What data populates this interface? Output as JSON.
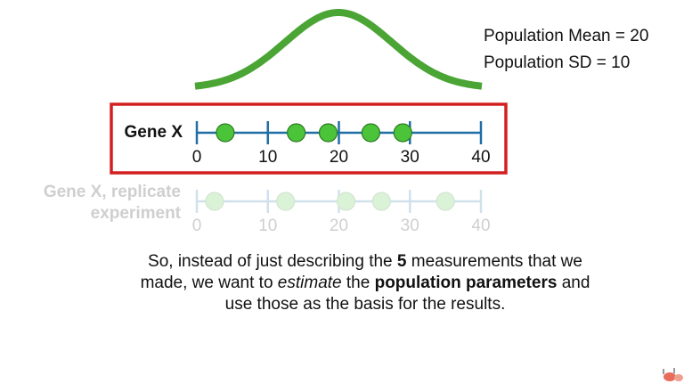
{
  "stats": {
    "mean_label": "Population Mean = 20",
    "sd_label": "Population SD = 10"
  },
  "gene_x": {
    "label": "Gene X",
    "measurements": [
      4,
      14,
      18.5,
      24.5,
      29
    ],
    "ticks": [
      "0",
      "10",
      "20",
      "30",
      "40"
    ]
  },
  "replicate": {
    "label_line1": "Gene X, replicate",
    "label_line2": "experiment",
    "measurements": [
      2.5,
      12.5,
      21,
      26,
      35
    ],
    "ticks": [
      "0",
      "10",
      "20",
      "30",
      "40"
    ]
  },
  "caption": {
    "p1": "So, instead of just describing the ",
    "b1": "5",
    "p2": " measurements that we made, we want to ",
    "i1": "estimate",
    "p3": " the ",
    "b2": "population parameters",
    "p4": " and use those as the basis for the results."
  },
  "colors": {
    "curve": "#4aa534",
    "axis": "#1f6fa6",
    "dot": "#4cc43a",
    "box": "#d22020",
    "faded_text": "#cfcfcf"
  }
}
